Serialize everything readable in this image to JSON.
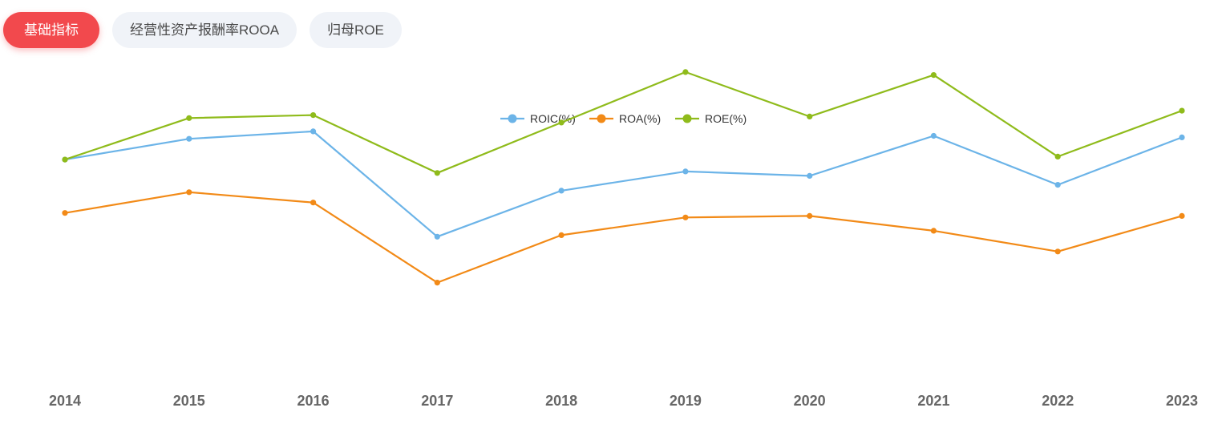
{
  "tabs": [
    {
      "label": "基础指标",
      "active": true
    },
    {
      "label": "经营性资产报酬率ROOA",
      "active": false
    },
    {
      "label": "归母ROE",
      "active": false
    }
  ],
  "chart_data": {
    "type": "line",
    "categories": [
      "2014",
      "2015",
      "2016",
      "2017",
      "2018",
      "2019",
      "2020",
      "2021",
      "2022",
      "2023"
    ],
    "series": [
      {
        "name": "ROIC(%)",
        "color": "#6cb4e8",
        "values": [
          7.7,
          8.4,
          8.65,
          5.1,
          6.65,
          7.3,
          7.15,
          8.5,
          6.85,
          8.45
        ]
      },
      {
        "name": "ROA(%)",
        "color": "#f28a17",
        "values": [
          5.9,
          6.6,
          6.25,
          3.55,
          5.15,
          5.75,
          5.8,
          5.3,
          4.6,
          5.8
        ]
      },
      {
        "name": "ROE(%)",
        "color": "#8fbb1b",
        "values": [
          7.7,
          9.1,
          9.2,
          7.25,
          8.95,
          10.65,
          9.15,
          10.55,
          7.8,
          9.35
        ]
      }
    ],
    "legend_position": "top-center",
    "grid": false,
    "ylim": [
      0,
      12
    ]
  }
}
